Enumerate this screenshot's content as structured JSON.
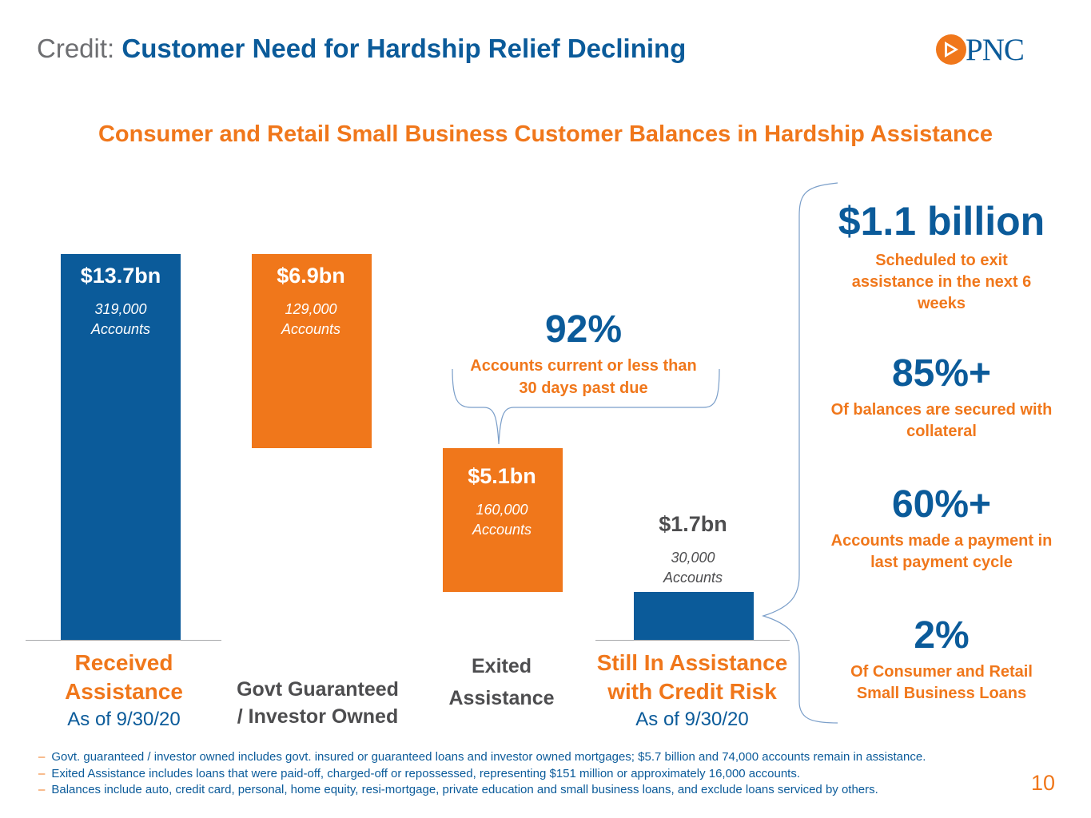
{
  "header": {
    "title_prefix": "Credit:",
    "title_main": "Customer Need for Hardship Relief Declining",
    "logo_text": "PNC"
  },
  "colors": {
    "blue": "#0b5b9a",
    "orange": "#f0771b",
    "gray": "#6d6e71"
  },
  "chart_data": {
    "type": "bar",
    "subtype": "waterfall",
    "title": "Consumer and Retail Small Business Customer Balances in Hardship Assistance",
    "units": "$bn",
    "ylim": [
      0,
      13.7
    ],
    "categories": [
      "Received Assistance",
      "Govt Guaranteed / Investor Owned",
      "Exited Assistance",
      "Still In Assistance with Credit Risk"
    ],
    "bars": [
      {
        "name": "received",
        "value": 13.7,
        "base": 0,
        "label": "$13.7bn",
        "accounts": "319,000 Accounts",
        "color": "#0b5b9a"
      },
      {
        "name": "govt",
        "value": 6.9,
        "base": 6.8,
        "label": "$6.9bn",
        "accounts": "129,000 Accounts",
        "color": "#f0771b"
      },
      {
        "name": "exited",
        "value": 5.1,
        "base": 1.7,
        "label": "$5.1bn",
        "accounts": "160,000 Accounts",
        "color": "#f0771b"
      },
      {
        "name": "still",
        "value": 1.7,
        "base": 0,
        "label": "$1.7bn",
        "accounts": "30,000 Accounts",
        "color": "#0b5b9a"
      }
    ],
    "category_labels": {
      "received": {
        "line1": "Received",
        "line2": "Assistance",
        "date": "As of 9/30/20"
      },
      "govt": {
        "line1": "Govt Guaranteed",
        "line2": "/ Investor Owned"
      },
      "exited": {
        "line1": "Exited",
        "line2": "Assistance"
      },
      "still": {
        "line1": "Still In Assistance",
        "line2": "with Credit Risk",
        "date": "As of 9/30/20"
      }
    },
    "annotation": {
      "value": "92%",
      "text_line1": "Accounts current or less than",
      "text_line2": "30 days past due"
    }
  },
  "stats": [
    {
      "value": "$1.1 billion",
      "line1": "Scheduled to exit",
      "line2": "assistance in the next 6",
      "line3": "weeks"
    },
    {
      "value": "85%+",
      "line1": "Of balances are secured with",
      "line2": "collateral"
    },
    {
      "value": "60%+",
      "line1": "Accounts made a payment in",
      "line2": "last payment cycle"
    },
    {
      "value": "2%",
      "line1": "Of Consumer and Retail",
      "line2": "Small Business Loans"
    }
  ],
  "footnotes": [
    "Govt. guaranteed / investor owned includes govt. insured or guaranteed loans and investor owned mortgages; $5.7 billion and 74,000 accounts remain in assistance.",
    "Exited Assistance includes loans that were paid-off, charged-off or repossessed, representing $151 million or approximately 16,000 accounts.",
    "Balances include auto, credit card, personal, home equity, resi-mortgage, private education and small business loans, and exclude loans serviced by others."
  ],
  "page_number": "10"
}
